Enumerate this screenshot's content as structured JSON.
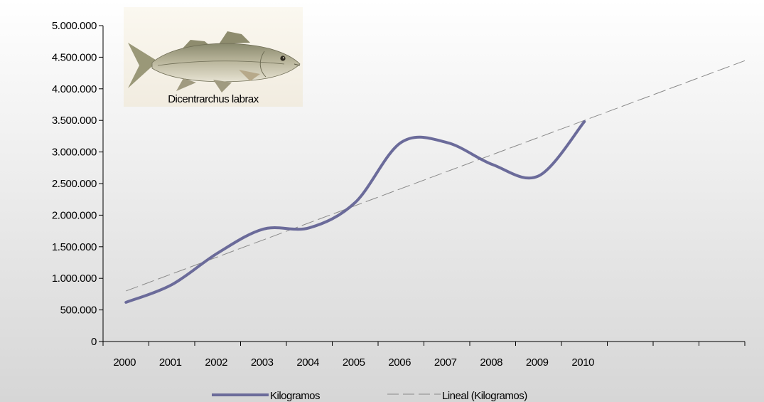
{
  "chart_data": {
    "type": "line",
    "title": "",
    "xlabel": "",
    "ylabel": "",
    "categories": [
      "2000",
      "2001",
      "2002",
      "2003",
      "2004",
      "2005",
      "2006",
      "2007",
      "2008",
      "2009",
      "2010"
    ],
    "series": [
      {
        "name": "Kilogramos",
        "color": "#6b6b9a",
        "values": [
          620000,
          900000,
          1400000,
          1780000,
          1800000,
          2200000,
          3150000,
          3150000,
          2800000,
          2620000,
          3480000
        ]
      }
    ],
    "trendline": {
      "name": "Lineal (Kilogramos)",
      "type": "linear",
      "color": "#8a8a8a",
      "start_value": 800000,
      "slope_per_category": 270000,
      "extends_to_category_index": 13.5
    },
    "ylim": [
      0,
      5000000
    ],
    "y_ticks": [
      0,
      500000,
      1000000,
      1500000,
      2000000,
      2500000,
      3000000,
      3500000,
      4000000,
      4500000,
      5000000
    ],
    "y_tick_labels": [
      "0",
      "500.000",
      "1.000.000",
      "1.500.000",
      "2.000.000",
      "2.500.000",
      "3.000.000",
      "3.500.000",
      "4.000.000",
      "4.500.000",
      "5.000.000"
    ],
    "x_category_slots": 14,
    "grid": false,
    "legend_position": "bottom",
    "background_gradient": [
      "#ffffff",
      "#d9d9d9"
    ]
  },
  "image": {
    "caption": "Dicentrarchus labrax",
    "icon": "fish-icon"
  }
}
